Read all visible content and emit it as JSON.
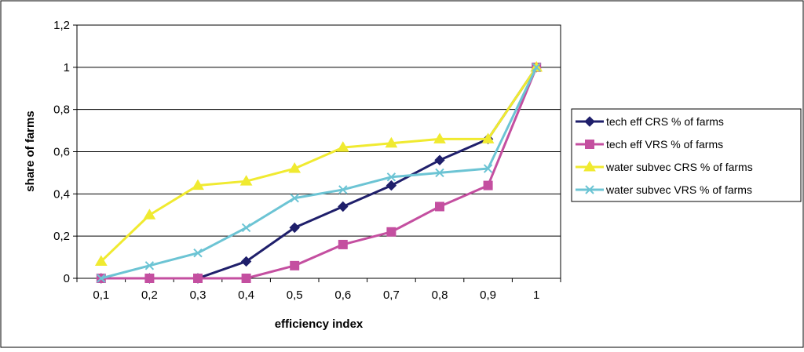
{
  "chart_data": {
    "type": "line",
    "xlabel": "efficiency index",
    "ylabel": "share of farms",
    "categories": [
      "0,1",
      "0,2",
      "0,3",
      "0,4",
      "0,5",
      "0,6",
      "0,7",
      "0,8",
      "0,9",
      "1"
    ],
    "ylim": [
      0,
      1.2
    ],
    "yticks": [
      "0",
      "0,2",
      "0,4",
      "0,6",
      "0,8",
      "1",
      "1,2"
    ],
    "grid": "horizontal",
    "legend_position": "right",
    "series": [
      {
        "name": "tech eff CRS % of farms",
        "color": "#1f1f6b",
        "marker": "diamond",
        "values": [
          0,
          0,
          0,
          0.08,
          0.24,
          0.34,
          0.44,
          0.56,
          0.66,
          1
        ]
      },
      {
        "name": "tech eff VRS % of farms",
        "color": "#c44fa0",
        "marker": "square",
        "values": [
          0,
          0,
          0,
          0,
          0.06,
          0.16,
          0.22,
          0.34,
          0.44,
          1
        ]
      },
      {
        "name": "water subvec CRS % of farms",
        "color": "#f0ea30",
        "marker": "triangle",
        "values": [
          0.08,
          0.3,
          0.44,
          0.46,
          0.52,
          0.62,
          0.64,
          0.66,
          0.66,
          1
        ]
      },
      {
        "name": "water subvec VRS % of farms",
        "color": "#6cc4d4",
        "marker": "x",
        "values": [
          0,
          0.06,
          0.12,
          0.24,
          0.38,
          0.42,
          0.48,
          0.5,
          0.52,
          1
        ]
      }
    ]
  }
}
